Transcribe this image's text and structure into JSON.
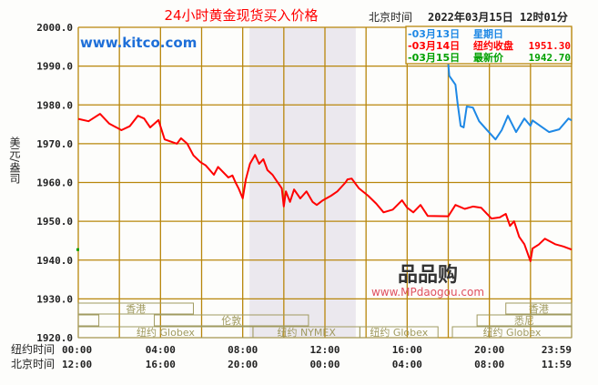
{
  "chart_data": {
    "type": "line",
    "title": "24小时黄金现货买入价格",
    "site": "www.kitco.com",
    "timestamp_label": "北京时间",
    "timestamp": "2022年03月15日 12时01分",
    "ylabel": "美元/盎司",
    "ylim": [
      1920,
      2000
    ],
    "yticks": [
      "2000.0",
      "1990.0",
      "1980.0",
      "1970.0",
      "1960.0",
      "1950.0",
      "1940.0",
      "1930.0",
      "1920.0"
    ],
    "xlim_hours": [
      0,
      24
    ],
    "x_rows": [
      {
        "label": "纽约时间",
        "ticks": [
          "00:00",
          "04:00",
          "08:00",
          "12:00",
          "16:00",
          "20:00",
          "23:59"
        ]
      },
      {
        "label": "北京时间",
        "ticks": [
          "12:00",
          "16:00",
          "20:00",
          "00:00",
          "04:00",
          "08:00",
          "11:59"
        ]
      }
    ],
    "grid": true,
    "legend": {
      "placement": "top-right",
      "entries": [
        {
          "date": "-03月13日",
          "label": "星期日",
          "value": "",
          "color": "#1e88e5"
        },
        {
          "date": "-03月14日",
          "label": "纽约收盘",
          "value": "1951.30",
          "color": "#ff0000"
        },
        {
          "date": "-03月15日",
          "label": "最新价",
          "value": "1942.70",
          "color": "#00a000"
        }
      ]
    },
    "shaded_session_hours": [
      8.33,
      13.5
    ],
    "sessions": [
      {
        "label": "香港",
        "row": 0,
        "ranges": [
          [
            0,
            5.6
          ],
          [
            20.8,
            24
          ]
        ]
      },
      {
        "label": "伦敦",
        "row": 1,
        "ranges": [
          [
            0,
            1
          ],
          [
            3.7,
            11.2
          ]
        ]
      },
      {
        "label": "悉尼",
        "row": 1,
        "ranges": [
          [
            19.4,
            24
          ]
        ]
      },
      {
        "label": "纽约 Globex",
        "row": 2,
        "ranges": [
          [
            0,
            8.5
          ]
        ]
      },
      {
        "label": "纽约 NYMEX",
        "row": 2,
        "ranges": [
          [
            8.5,
            13.7
          ]
        ]
      },
      {
        "label": "纽约 Globex",
        "row": 2,
        "ranges": [
          [
            13.7,
            17.5
          ],
          [
            18.2,
            24
          ]
        ]
      }
    ],
    "series": [
      {
        "color": "#ff0000",
        "points": [
          [
            0,
            1976.4
          ],
          [
            0.5,
            1975.8
          ],
          [
            1.06,
            1977.7
          ],
          [
            1.5,
            1975.2
          ],
          [
            2.1,
            1973.5
          ],
          [
            2.5,
            1974.5
          ],
          [
            2.9,
            1977.2
          ],
          [
            3.2,
            1976.5
          ],
          [
            3.5,
            1974.2
          ],
          [
            3.9,
            1976.1
          ],
          [
            4.2,
            1971.1
          ],
          [
            4.8,
            1970
          ],
          [
            5.0,
            1971.4
          ],
          [
            5.3,
            1970
          ],
          [
            5.6,
            1967
          ],
          [
            5.95,
            1965.2
          ],
          [
            6.2,
            1964.4
          ],
          [
            6.6,
            1962
          ],
          [
            6.8,
            1964
          ],
          [
            7.3,
            1961.3
          ],
          [
            7.5,
            1961.8
          ],
          [
            7.65,
            1960
          ],
          [
            7.8,
            1958.5
          ],
          [
            8.0,
            1955.9
          ],
          [
            8.15,
            1960.8
          ],
          [
            8.35,
            1964.8
          ],
          [
            8.6,
            1967.1
          ],
          [
            8.8,
            1964.8
          ],
          [
            9.0,
            1966
          ],
          [
            9.2,
            1963.2
          ],
          [
            9.45,
            1962
          ],
          [
            9.6,
            1960.8
          ],
          [
            9.9,
            1958.5
          ],
          [
            10.0,
            1953.8
          ],
          [
            10.1,
            1957.7
          ],
          [
            10.3,
            1955
          ],
          [
            10.5,
            1958.2
          ],
          [
            10.8,
            1955.9
          ],
          [
            11.1,
            1957.7
          ],
          [
            11.4,
            1955
          ],
          [
            11.6,
            1954.2
          ],
          [
            11.9,
            1955.4
          ],
          [
            12.3,
            1956.6
          ],
          [
            12.6,
            1957.7
          ],
          [
            13.0,
            1960
          ],
          [
            13.1,
            1960.8
          ],
          [
            13.3,
            1961
          ],
          [
            13.65,
            1958.5
          ],
          [
            14.1,
            1956.6
          ],
          [
            14.5,
            1954.5
          ],
          [
            14.85,
            1952.3
          ],
          [
            15.3,
            1953
          ],
          [
            15.75,
            1955.4
          ],
          [
            16.0,
            1953.5
          ],
          [
            16.3,
            1952.3
          ],
          [
            16.65,
            1954.2
          ],
          [
            17.0,
            1951.4
          ],
          [
            18.0,
            1951.3
          ],
          [
            18.35,
            1954.2
          ],
          [
            18.8,
            1953.2
          ],
          [
            19.2,
            1953.8
          ],
          [
            19.6,
            1953.5
          ],
          [
            20.1,
            1950.7
          ],
          [
            20.5,
            1951
          ],
          [
            20.8,
            1951.9
          ],
          [
            21.0,
            1948.8
          ],
          [
            21.2,
            1950
          ],
          [
            21.45,
            1946
          ],
          [
            21.7,
            1944.1
          ],
          [
            22.0,
            1939.7
          ],
          [
            22.1,
            1943
          ],
          [
            22.4,
            1944
          ],
          [
            22.7,
            1945.5
          ],
          [
            23.2,
            1944.1
          ],
          [
            23.6,
            1943.5
          ],
          [
            24,
            1942.7
          ]
        ]
      },
      {
        "color": "#1e88e5",
        "points": [
          [
            18.0,
            1990.6
          ],
          [
            18.05,
            1987.5
          ],
          [
            18.35,
            1985.2
          ],
          [
            18.45,
            1980.5
          ],
          [
            18.6,
            1974.6
          ],
          [
            18.75,
            1974.2
          ],
          [
            18.9,
            1979.6
          ],
          [
            19.2,
            1979.3
          ],
          [
            19.5,
            1975.8
          ],
          [
            19.85,
            1973.7
          ],
          [
            20.3,
            1971.1
          ],
          [
            20.6,
            1973.5
          ],
          [
            20.9,
            1977.2
          ],
          [
            21.3,
            1973
          ],
          [
            21.7,
            1976.5
          ],
          [
            22.0,
            1974.6
          ],
          [
            22.1,
            1976
          ],
          [
            22.5,
            1974.5
          ],
          [
            22.9,
            1973
          ],
          [
            23.4,
            1973.7
          ],
          [
            23.85,
            1976.5
          ],
          [
            24,
            1976
          ]
        ]
      }
    ],
    "latest_marker": {
      "value": 1942.7,
      "color": "#00a000"
    }
  },
  "watermark": {
    "logo_text": "品品购",
    "url": "www.MPdaogou.com"
  },
  "colors": {
    "grid": "#b8860b",
    "shade": "#ebe8ee",
    "session": "#a09a60",
    "title": "#ff0000",
    "site": "#1e6fd8"
  }
}
